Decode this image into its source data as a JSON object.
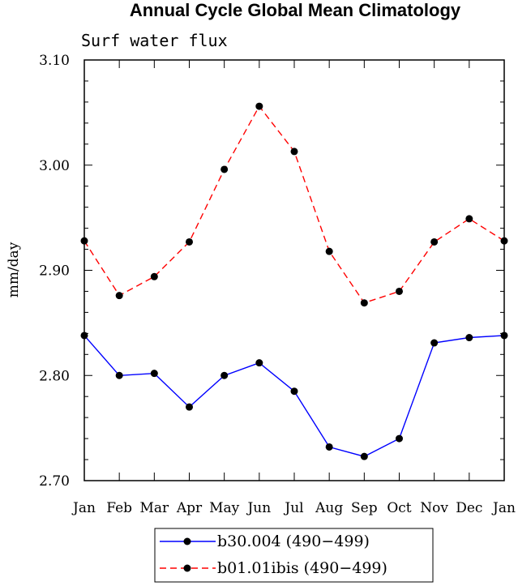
{
  "chart_data": {
    "type": "line",
    "title": "Annual Cycle Global Mean Climatology",
    "subtitle": "Surf water flux",
    "ylabel": "mm/day",
    "xlabel": "",
    "categories": [
      "Jan",
      "Feb",
      "Mar",
      "Apr",
      "May",
      "Jun",
      "Jul",
      "Aug",
      "Sep",
      "Oct",
      "Nov",
      "Dec",
      "Jan"
    ],
    "ylim": [
      2.7,
      3.1
    ],
    "yticks": [
      "2.70",
      "2.80",
      "2.90",
      "3.00",
      "3.10"
    ],
    "grid": false,
    "legend_position": "bottom-center",
    "series": [
      {
        "name": "b30.004 (490−499)",
        "color": "#0000ff",
        "style": "solid",
        "values": [
          2.838,
          2.8,
          2.802,
          2.77,
          2.8,
          2.812,
          2.785,
          2.732,
          2.723,
          2.74,
          2.831,
          2.836,
          2.838
        ]
      },
      {
        "name": "b01.01ibis (490−499)",
        "color": "#ff0000",
        "style": "dashed",
        "values": [
          2.928,
          2.876,
          2.894,
          2.927,
          2.996,
          3.056,
          3.013,
          2.918,
          2.869,
          2.88,
          2.927,
          2.949,
          2.928
        ]
      }
    ]
  }
}
